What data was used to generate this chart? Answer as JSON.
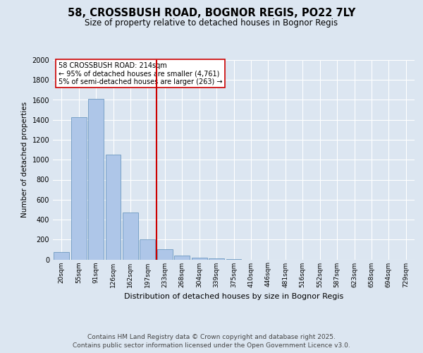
{
  "title_line1": "58, CROSSBUSH ROAD, BOGNOR REGIS, PO22 7LY",
  "title_line2": "Size of property relative to detached houses in Bognor Regis",
  "xlabel": "Distribution of detached houses by size in Bognor Regis",
  "ylabel": "Number of detached properties",
  "categories": [
    "20sqm",
    "55sqm",
    "91sqm",
    "126sqm",
    "162sqm",
    "197sqm",
    "233sqm",
    "268sqm",
    "304sqm",
    "339sqm",
    "375sqm",
    "410sqm",
    "446sqm",
    "481sqm",
    "516sqm",
    "552sqm",
    "587sqm",
    "623sqm",
    "658sqm",
    "694sqm",
    "729sqm"
  ],
  "values": [
    75,
    1430,
    1610,
    1050,
    470,
    200,
    105,
    40,
    20,
    10,
    4,
    0,
    0,
    0,
    0,
    0,
    0,
    0,
    0,
    0,
    0
  ],
  "bar_color": "#aec6e8",
  "bar_edge_color": "#5b8db8",
  "vline_color": "#cc0000",
  "vline_index": 5.5,
  "annotation_text": "58 CROSSBUSH ROAD: 214sqm\n← 95% of detached houses are smaller (4,761)\n5% of semi-detached houses are larger (263) →",
  "annotation_box_facecolor": "#ffffff",
  "annotation_box_edgecolor": "#cc0000",
  "ylim": [
    0,
    2000
  ],
  "yticks": [
    0,
    200,
    400,
    600,
    800,
    1000,
    1200,
    1400,
    1600,
    1800,
    2000
  ],
  "bg_color": "#dce6f1",
  "footer_line1": "Contains HM Land Registry data © Crown copyright and database right 2025.",
  "footer_line2": "Contains public sector information licensed under the Open Government Licence v3.0.",
  "title_fontsize": 10.5,
  "subtitle_fontsize": 8.5,
  "footer_fontsize": 6.5,
  "ylabel_fontsize": 7.5,
  "xlabel_fontsize": 8,
  "tick_fontsize": 7,
  "xtick_fontsize": 6.5,
  "annot_fontsize": 7
}
